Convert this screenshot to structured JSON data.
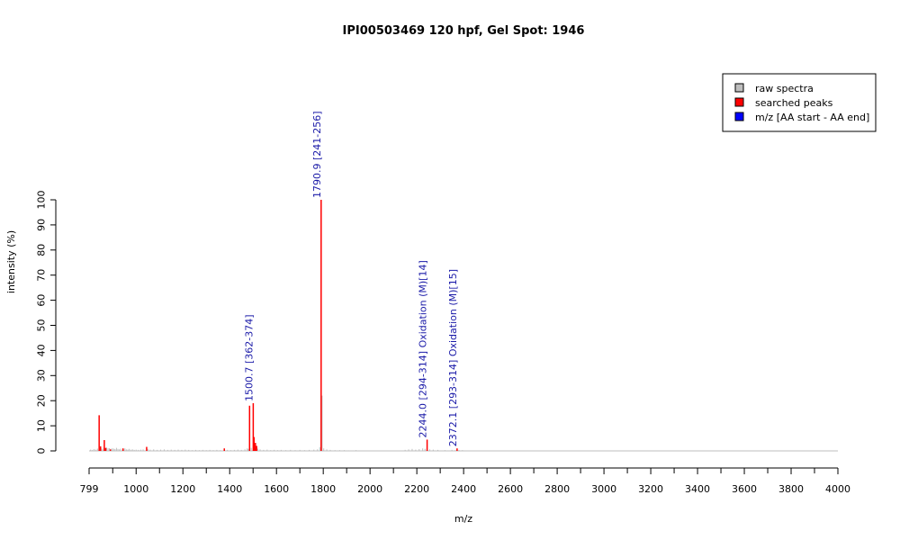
{
  "chart_data": {
    "type": "bar",
    "title": "IPI00503469  120 hpf, Gel Spot: 1946",
    "xlabel": "m/z",
    "ylabel": "intensity (%)",
    "xlim": [
      799,
      4000
    ],
    "ylim": [
      0,
      100
    ],
    "x_ticks": [
      799,
      1000,
      1200,
      1400,
      1600,
      1800,
      2000,
      2200,
      2400,
      2600,
      2800,
      3000,
      3200,
      3400,
      3600,
      3800,
      4000
    ],
    "y_ticks": [
      0,
      10,
      20,
      30,
      40,
      50,
      60,
      70,
      80,
      90,
      100
    ],
    "legend": {
      "position": "top-right",
      "entries": [
        {
          "label": "raw spectra",
          "color": "#bebebe"
        },
        {
          "label": "searched peaks",
          "color": "#ff0000"
        },
        {
          "label": "m/z [AA start - AA end]",
          "color": "#0000ff"
        }
      ]
    },
    "series": [
      {
        "name": "raw spectra",
        "color": "#bebebe",
        "points": [
          [
            805,
            0.5
          ],
          [
            812,
            0.4
          ],
          [
            820,
            0.7
          ],
          [
            828,
            0.5
          ],
          [
            835,
            0.9
          ],
          [
            842,
            1.1
          ],
          [
            850,
            1.0
          ],
          [
            856,
            0.8
          ],
          [
            862,
            1.2
          ],
          [
            868,
            0.9
          ],
          [
            874,
            1.3
          ],
          [
            880,
            1.0
          ],
          [
            886,
            1.1
          ],
          [
            892,
            0.8
          ],
          [
            898,
            1.0
          ],
          [
            904,
            0.9
          ],
          [
            910,
            0.7
          ],
          [
            916,
            1.2
          ],
          [
            922,
            0.8
          ],
          [
            928,
            0.6
          ],
          [
            934,
            0.9
          ],
          [
            946,
            0.7
          ],
          [
            952,
            1.0
          ],
          [
            958,
            0.6
          ],
          [
            964,
            0.5
          ],
          [
            970,
            0.8
          ],
          [
            978,
            0.5
          ],
          [
            985,
            0.6
          ],
          [
            992,
            0.4
          ],
          [
            1000,
            0.5
          ],
          [
            1010,
            0.4
          ],
          [
            1020,
            0.5
          ],
          [
            1030,
            0.6
          ],
          [
            1050,
            0.7
          ],
          [
            1060,
            0.5
          ],
          [
            1075,
            0.6
          ],
          [
            1090,
            0.4
          ],
          [
            1105,
            0.5
          ],
          [
            1120,
            0.6
          ],
          [
            1135,
            0.4
          ],
          [
            1150,
            0.5
          ],
          [
            1165,
            0.4
          ],
          [
            1180,
            0.5
          ],
          [
            1195,
            0.4
          ],
          [
            1210,
            0.5
          ],
          [
            1225,
            0.4
          ],
          [
            1240,
            0.3
          ],
          [
            1255,
            0.4
          ],
          [
            1270,
            0.3
          ],
          [
            1285,
            0.4
          ],
          [
            1300,
            0.3
          ],
          [
            1315,
            0.4
          ],
          [
            1330,
            0.3
          ],
          [
            1345,
            0.4
          ],
          [
            1360,
            0.3
          ],
          [
            1390,
            0.4
          ],
          [
            1405,
            0.3
          ],
          [
            1420,
            0.4
          ],
          [
            1435,
            0.5
          ],
          [
            1450,
            0.4
          ],
          [
            1465,
            0.6
          ],
          [
            1475,
            1.0
          ],
          [
            1480,
            0.8
          ],
          [
            1492,
            1.2
          ],
          [
            1508,
            1.0
          ],
          [
            1520,
            0.9
          ],
          [
            1530,
            0.6
          ],
          [
            1545,
            0.4
          ],
          [
            1560,
            0.5
          ],
          [
            1575,
            0.3
          ],
          [
            1590,
            0.4
          ],
          [
            1605,
            0.3
          ],
          [
            1620,
            0.4
          ],
          [
            1640,
            0.3
          ],
          [
            1660,
            0.4
          ],
          [
            1680,
            0.3
          ],
          [
            1700,
            0.4
          ],
          [
            1720,
            0.3
          ],
          [
            1740,
            0.4
          ],
          [
            1760,
            0.5
          ],
          [
            1775,
            0.6
          ],
          [
            1785,
            1.5
          ],
          [
            1795,
            22.0
          ],
          [
            1802,
            1.0
          ],
          [
            1815,
            0.6
          ],
          [
            1830,
            0.4
          ],
          [
            1850,
            0.3
          ],
          [
            1870,
            0.3
          ],
          [
            1890,
            0.3
          ],
          [
            1910,
            0.2
          ],
          [
            1940,
            0.3
          ],
          [
            2150,
            0.4
          ],
          [
            2165,
            0.6
          ],
          [
            2180,
            0.8
          ],
          [
            2195,
            0.5
          ],
          [
            2210,
            0.7
          ],
          [
            2225,
            1.0
          ],
          [
            2235,
            0.8
          ],
          [
            2255,
            0.6
          ],
          [
            2270,
            0.5
          ],
          [
            2290,
            0.4
          ],
          [
            2320,
            0.3
          ],
          [
            2350,
            0.4
          ],
          [
            2365,
            0.3
          ],
          [
            2380,
            0.4
          ],
          [
            2395,
            0.3
          ]
        ]
      },
      {
        "name": "searched peaks",
        "color": "#ff0000",
        "points": [
          [
            842,
            14.2
          ],
          [
            848,
            1.8
          ],
          [
            864,
            4.3
          ],
          [
            870,
            1.2
          ],
          [
            890,
            0.6
          ],
          [
            944,
            1.0
          ],
          [
            1045,
            1.6
          ],
          [
            1377,
            1.0
          ],
          [
            1485,
            18.0
          ],
          [
            1500.7,
            19.0
          ],
          [
            1504,
            5.5
          ],
          [
            1510,
            3.2
          ],
          [
            1515,
            2.0
          ],
          [
            1790.9,
            100.0
          ],
          [
            2244.0,
            4.5
          ],
          [
            2372.1,
            1.0
          ]
        ]
      }
    ],
    "annotations": [
      {
        "x": 1500.7,
        "y": 19.0,
        "text": "1500.7 [362-374]"
      },
      {
        "x": 1790.9,
        "y": 100.0,
        "text": "1790.9 [241-256]"
      },
      {
        "x": 2244.0,
        "y": 4.5,
        "text": "2244.0 [294-314] Oxidation (M)[14]"
      },
      {
        "x": 2372.1,
        "y": 1.0,
        "text": "2372.1 [293-314] Oxidation (M)[15]"
      }
    ]
  }
}
